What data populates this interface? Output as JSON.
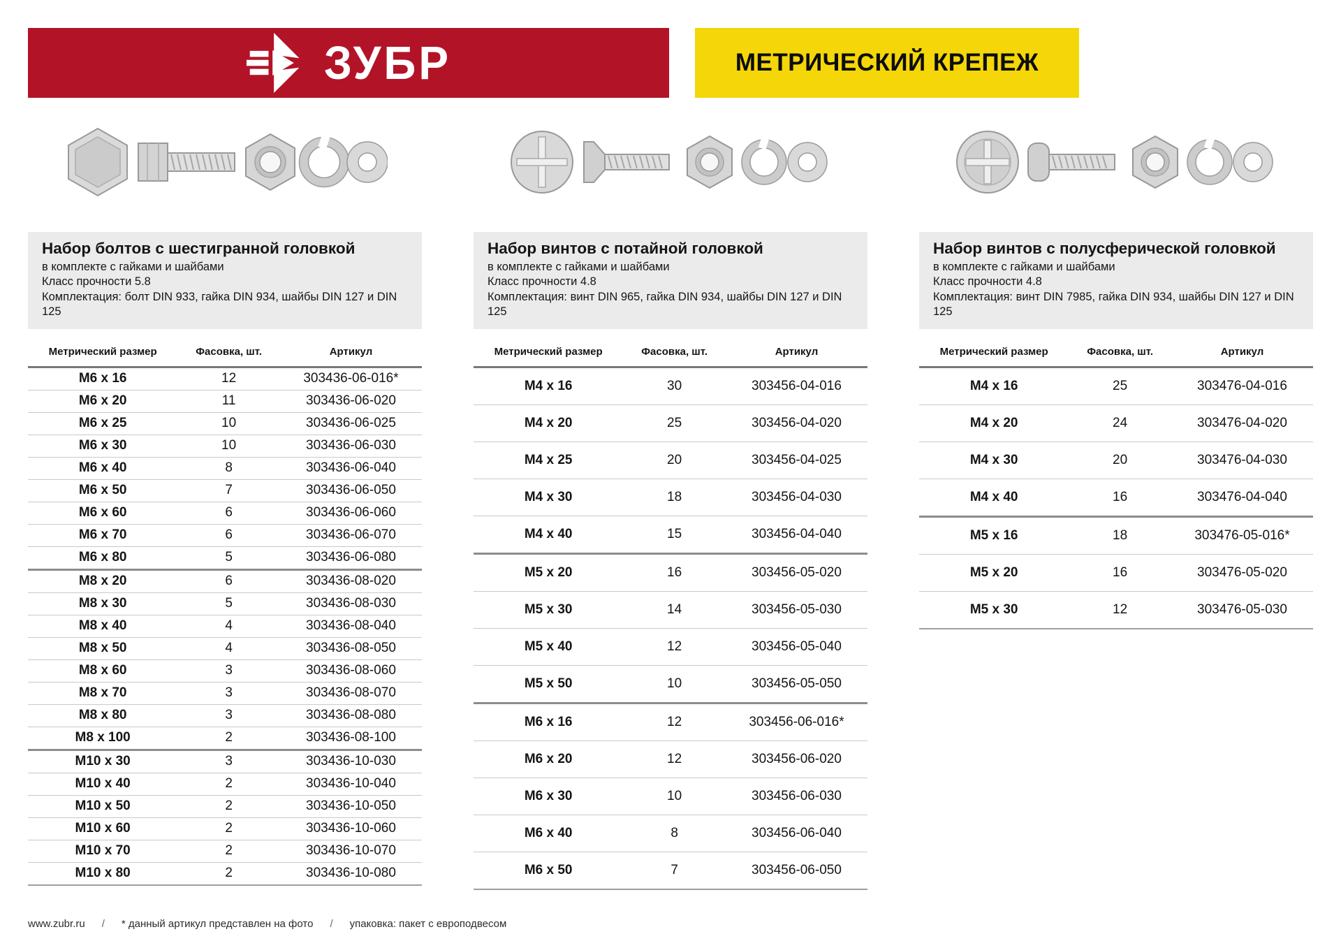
{
  "brand": {
    "name": "ЗУБР"
  },
  "page_title": "МЕТРИЧЕСКИЙ КРЕПЕЖ",
  "colors": {
    "brand_red": "#b31327",
    "brand_yellow": "#f4d609",
    "panel_gray": "#ebebeb"
  },
  "table_headers": {
    "size": "Метрический размер",
    "pack": "Фасовка, шт.",
    "sku": "Артикул"
  },
  "sections": [
    {
      "title": "Набор болтов с шестигранной головкой",
      "subtitle": "в комплекте с гайками и шайбами",
      "strength": "Класс прочности 5.8",
      "contents": "Комплектация: болт DIN 933, гайка DIN 934, шайбы DIN 127 и DIN 125",
      "dense": true,
      "group_breaks": [
        9,
        17
      ],
      "rows": [
        [
          "M6 x 16",
          "12",
          "303436-06-016*"
        ],
        [
          "M6 x 20",
          "11",
          "303436-06-020"
        ],
        [
          "M6 x 25",
          "10",
          "303436-06-025"
        ],
        [
          "M6 x 30",
          "10",
          "303436-06-030"
        ],
        [
          "M6 x 40",
          "8",
          "303436-06-040"
        ],
        [
          "M6 x 50",
          "7",
          "303436-06-050"
        ],
        [
          "M6 x 60",
          "6",
          "303436-06-060"
        ],
        [
          "M6 x 70",
          "6",
          "303436-06-070"
        ],
        [
          "M6 x 80",
          "5",
          "303436-06-080"
        ],
        [
          "M8 x 20",
          "6",
          "303436-08-020"
        ],
        [
          "M8 x 30",
          "5",
          "303436-08-030"
        ],
        [
          "M8 x 40",
          "4",
          "303436-08-040"
        ],
        [
          "M8 x 50",
          "4",
          "303436-08-050"
        ],
        [
          "M8 x 60",
          "3",
          "303436-08-060"
        ],
        [
          "M8 x 70",
          "3",
          "303436-08-070"
        ],
        [
          "M8 x 80",
          "3",
          "303436-08-080"
        ],
        [
          "M8 x 100",
          "2",
          "303436-08-100"
        ],
        [
          "M10 x 30",
          "3",
          "303436-10-030"
        ],
        [
          "M10 x 40",
          "2",
          "303436-10-040"
        ],
        [
          "M10 x 50",
          "2",
          "303436-10-050"
        ],
        [
          "M10 x 60",
          "2",
          "303436-10-060"
        ],
        [
          "M10 x 70",
          "2",
          "303436-10-070"
        ],
        [
          "M10 x 80",
          "2",
          "303436-10-080"
        ]
      ]
    },
    {
      "title": "Набор винтов с потайной головкой",
      "subtitle": "в комплекте с гайками и шайбами",
      "strength": "Класс прочности 4.8",
      "contents": "Комплектация: винт DIN 965, гайка DIN 934, шайбы DIN 127 и DIN 125",
      "dense": false,
      "group_breaks": [
        5,
        9
      ],
      "rows": [
        [
          "M4 x 16",
          "30",
          "303456-04-016"
        ],
        [
          "M4 x 20",
          "25",
          "303456-04-020"
        ],
        [
          "M4 x 25",
          "20",
          "303456-04-025"
        ],
        [
          "M4 x 30",
          "18",
          "303456-04-030"
        ],
        [
          "M4 x 40",
          "15",
          "303456-04-040"
        ],
        [
          "M5 x 20",
          "16",
          "303456-05-020"
        ],
        [
          "M5 x 30",
          "14",
          "303456-05-030"
        ],
        [
          "M5 x 40",
          "12",
          "303456-05-040"
        ],
        [
          "M5 x 50",
          "10",
          "303456-05-050"
        ],
        [
          "M6 x 16",
          "12",
          "303456-06-016*"
        ],
        [
          "M6 x 20",
          "12",
          "303456-06-020"
        ],
        [
          "M6 x 30",
          "10",
          "303456-06-030"
        ],
        [
          "M6 x 40",
          "8",
          "303456-06-040"
        ],
        [
          "M6 x 50",
          "7",
          "303456-06-050"
        ]
      ]
    },
    {
      "title": "Набор винтов с полусферической головкой",
      "subtitle": "в комплекте с гайками и шайбами",
      "strength": "Класс прочности 4.8",
      "contents": "Комплектация: винт DIN 7985, гайка DIN 934, шайбы DIN 127 и DIN 125",
      "dense": false,
      "group_breaks": [
        4
      ],
      "rows": [
        [
          "M4 x 16",
          "25",
          "303476-04-016"
        ],
        [
          "M4 x 20",
          "24",
          "303476-04-020"
        ],
        [
          "M4 x 30",
          "20",
          "303476-04-030"
        ],
        [
          "M4 x 40",
          "16",
          "303476-04-040"
        ],
        [
          "M5 x 16",
          "18",
          "303476-05-016*"
        ],
        [
          "M5 x 20",
          "16",
          "303476-05-020"
        ],
        [
          "M5 x 30",
          "12",
          "303476-05-030"
        ]
      ]
    }
  ],
  "footer": {
    "site": "www.zubr.ru",
    "sep": "/",
    "note_photo": "* данный артикул представлен на фото",
    "note_pack": "упаковка: пакет с европодвесом"
  }
}
